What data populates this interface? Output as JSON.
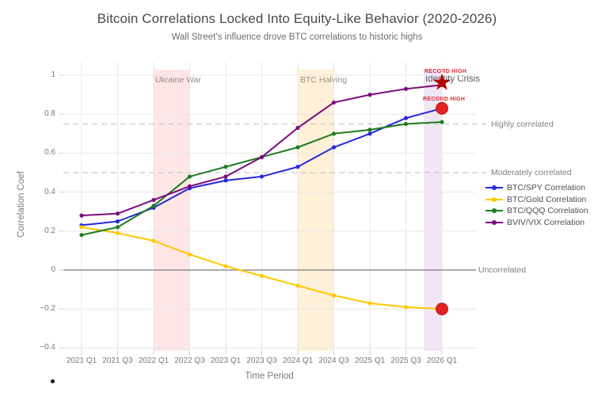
{
  "chart_data": {
    "type": "line",
    "title": "Bitcoin Correlations Locked Into Equity-Like Behavior (2020-2026)",
    "subtitle": "Wall Street's influence drove BTC correlations to historic highs",
    "xlabel": "Time Period",
    "ylabel": "Correlation Coef",
    "categories": [
      "2021 Q1",
      "2021 Q3",
      "2022 Q1",
      "2022 Q3",
      "2023 Q1",
      "2023 Q3",
      "2024 Q1",
      "2024 Q3",
      "2025 Q1",
      "2025 Q3",
      "2026 Q1"
    ],
    "series": [
      {
        "name": "BTC/SPY Correlation",
        "color": "#2828d7",
        "values": [
          0.23,
          0.25,
          0.32,
          0.42,
          0.46,
          0.48,
          0.53,
          0.63,
          0.7,
          0.78,
          0.83
        ],
        "endpoint": {
          "shape": "dot",
          "color": "#e32222",
          "label": "RECORD HIGH"
        }
      },
      {
        "name": "BTC/Gold Correlation",
        "color": "#ffc800",
        "values": [
          0.22,
          0.19,
          0.15,
          0.08,
          0.02,
          -0.03,
          -0.08,
          -0.13,
          -0.17,
          -0.19,
          -0.2
        ],
        "endpoint": {
          "shape": "dot",
          "color": "#e32222"
        }
      },
      {
        "name": "BTC/QQQ Correlation",
        "color": "#1e7d1e",
        "values": [
          0.18,
          0.22,
          0.33,
          0.48,
          0.53,
          0.58,
          0.63,
          0.7,
          0.72,
          0.75,
          0.76
        ]
      },
      {
        "name": "BVIV/VIX Correlation",
        "color": "#7c0d7c",
        "values": [
          0.28,
          0.29,
          0.36,
          0.43,
          0.48,
          0.58,
          0.73,
          0.86,
          0.9,
          0.93,
          0.95
        ],
        "endpoint": {
          "shape": "star",
          "color": "#b30000",
          "label": "RECORD HIGH"
        }
      }
    ],
    "ylim": [
      -0.4,
      1.0
    ],
    "yticks": [
      1,
      0.8,
      0.6,
      0.4,
      0.2,
      0,
      -0.2,
      -0.4
    ],
    "grid": true,
    "legend_position": "middle-right",
    "reference_lines": [
      {
        "label": "Highly correlated",
        "value": 0.75,
        "style": "dashed"
      },
      {
        "label": "Moderately correlated",
        "value": 0.5,
        "style": "dashed"
      },
      {
        "label": "Uncorrelated",
        "value": 0,
        "style": "solid"
      }
    ],
    "bands": [
      {
        "label": "Ukraine War",
        "from": "2022 Q1",
        "to": "2022 Q3",
        "color": "rgba(255,80,80,0.14)"
      },
      {
        "label": "BTC Halving",
        "from": "2024 Q1",
        "to": "2024 Q3",
        "color": "rgba(255,170,40,0.18)"
      },
      {
        "label": "Identity Crisis",
        "from": "2025 Q4",
        "to": "2026 Q1",
        "color": "rgba(150,60,160,0.13)"
      }
    ],
    "annotations": {
      "record_high_top": "RECORD HIGH",
      "record_high_mid": "RECORD HIGH",
      "identity_crisis": "Identity Crisis"
    }
  }
}
